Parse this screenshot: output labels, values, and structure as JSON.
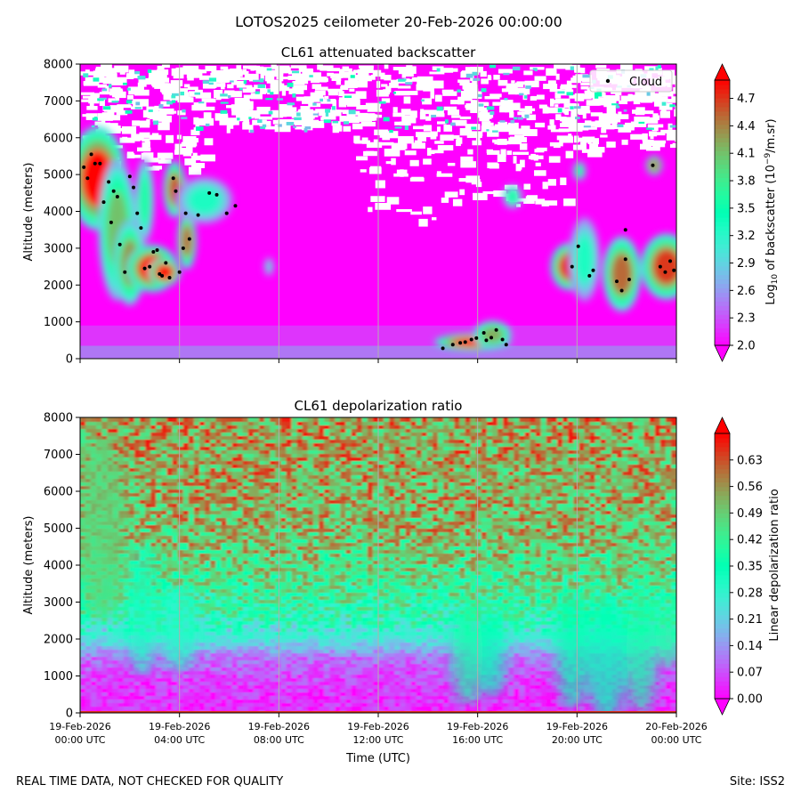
{
  "figure": {
    "suptitle": "LOTOS2025 ceilometer 20-Feb-2026 00:00:00",
    "footer_left": "REAL TIME DATA, NOT CHECKED FOR QUALITY",
    "footer_right": "Site: ISS2"
  },
  "chart_data": [
    {
      "type": "heatmap",
      "title": "CL61 attenuated backscatter",
      "ylabel": "Altitude (meters)",
      "xlabel": "",
      "xlim_hours": [
        0,
        24
      ],
      "ylim": [
        0,
        8000
      ],
      "yticks": [
        0,
        1000,
        2000,
        3000,
        4000,
        5000,
        6000,
        7000,
        8000
      ],
      "xticks_hours": [
        0,
        4,
        8,
        12,
        16,
        20,
        24
      ],
      "grid": "vertical lines at each x tick",
      "colorbar": {
        "label_prefix": "Log",
        "label_sub": "10",
        "label_mid": " of backscatter (10",
        "label_sup": "−9",
        "label_suffix": "/m.sr)",
        "min": 2.0,
        "max": 4.9,
        "ticks": [
          "2.0",
          "2.3",
          "2.6",
          "2.9",
          "3.2",
          "3.5",
          "3.8",
          "4.1",
          "4.4",
          "4.7"
        ],
        "colormap": "rainbow"
      },
      "legend": {
        "label": "Cloud",
        "placement": "top-right"
      },
      "cloud_points": [
        {
          "t": 0.15,
          "alt": 5200
        },
        {
          "t": 0.3,
          "alt": 4900
        },
        {
          "t": 0.45,
          "alt": 5550
        },
        {
          "t": 0.6,
          "alt": 5300
        },
        {
          "t": 0.8,
          "alt": 5300
        },
        {
          "t": 0.95,
          "alt": 4250
        },
        {
          "t": 1.15,
          "alt": 4800
        },
        {
          "t": 1.25,
          "alt": 3700
        },
        {
          "t": 1.35,
          "alt": 4550
        },
        {
          "t": 1.5,
          "alt": 4400
        },
        {
          "t": 1.6,
          "alt": 3100
        },
        {
          "t": 1.8,
          "alt": 2350
        },
        {
          "t": 2.0,
          "alt": 4950
        },
        {
          "t": 2.15,
          "alt": 4650
        },
        {
          "t": 2.3,
          "alt": 3950
        },
        {
          "t": 2.45,
          "alt": 3550
        },
        {
          "t": 2.6,
          "alt": 2450
        },
        {
          "t": 2.8,
          "alt": 2500
        },
        {
          "t": 2.95,
          "alt": 2900
        },
        {
          "t": 3.1,
          "alt": 2950
        },
        {
          "t": 3.2,
          "alt": 2300
        },
        {
          "t": 3.3,
          "alt": 2250
        },
        {
          "t": 3.45,
          "alt": 2600
        },
        {
          "t": 3.6,
          "alt": 2200
        },
        {
          "t": 3.75,
          "alt": 4900
        },
        {
          "t": 3.85,
          "alt": 4550
        },
        {
          "t": 4.0,
          "alt": 2350
        },
        {
          "t": 4.15,
          "alt": 3000
        },
        {
          "t": 4.25,
          "alt": 3950
        },
        {
          "t": 4.4,
          "alt": 3250
        },
        {
          "t": 4.75,
          "alt": 3900
        },
        {
          "t": 5.2,
          "alt": 4500
        },
        {
          "t": 5.5,
          "alt": 4450
        },
        {
          "t": 5.9,
          "alt": 3950
        },
        {
          "t": 6.25,
          "alt": 4150
        },
        {
          "t": 14.6,
          "alt": 280
        },
        {
          "t": 15.0,
          "alt": 380
        },
        {
          "t": 15.3,
          "alt": 430
        },
        {
          "t": 15.5,
          "alt": 450
        },
        {
          "t": 15.75,
          "alt": 520
        },
        {
          "t": 15.95,
          "alt": 560
        },
        {
          "t": 16.25,
          "alt": 700
        },
        {
          "t": 16.35,
          "alt": 500
        },
        {
          "t": 16.55,
          "alt": 570
        },
        {
          "t": 16.75,
          "alt": 780
        },
        {
          "t": 17.0,
          "alt": 520
        },
        {
          "t": 17.15,
          "alt": 380
        },
        {
          "t": 20.05,
          "alt": 3050
        },
        {
          "t": 20.5,
          "alt": 2250
        },
        {
          "t": 20.65,
          "alt": 2400
        },
        {
          "t": 21.6,
          "alt": 2100
        },
        {
          "t": 21.8,
          "alt": 1850
        },
        {
          "t": 21.95,
          "alt": 2700
        },
        {
          "t": 22.1,
          "alt": 2150
        },
        {
          "t": 21.95,
          "alt": 3500
        },
        {
          "t": 23.05,
          "alt": 5250
        },
        {
          "t": 23.35,
          "alt": 2500
        },
        {
          "t": 23.55,
          "alt": 2350
        },
        {
          "t": 23.75,
          "alt": 2650
        },
        {
          "t": 23.9,
          "alt": 2400
        },
        {
          "t": 19.8,
          "alt": 2500
        }
      ],
      "plumes": [
        {
          "t": 0.7,
          "alt": 4900,
          "w": 0.9,
          "h": 1100,
          "v": 4.9
        },
        {
          "t": 1.5,
          "alt": 3500,
          "w": 0.6,
          "h": 1500,
          "v": 4.1
        },
        {
          "t": 2.0,
          "alt": 2600,
          "w": 0.5,
          "h": 900,
          "v": 4.3
        },
        {
          "t": 2.9,
          "alt": 2450,
          "w": 0.8,
          "h": 500,
          "v": 4.9
        },
        {
          "t": 3.4,
          "alt": 2350,
          "w": 0.5,
          "h": 300,
          "v": 4.9
        },
        {
          "t": 2.6,
          "alt": 4300,
          "w": 0.3,
          "h": 900,
          "v": 3.6
        },
        {
          "t": 3.8,
          "alt": 4600,
          "w": 0.35,
          "h": 600,
          "v": 4.6
        },
        {
          "t": 4.3,
          "alt": 3200,
          "w": 0.3,
          "h": 600,
          "v": 4.5
        },
        {
          "t": 5.0,
          "alt": 4300,
          "w": 0.9,
          "h": 500,
          "v": 3.3
        },
        {
          "t": 7.6,
          "alt": 2500,
          "w": 0.15,
          "h": 200,
          "v": 3.0
        },
        {
          "t": 15.8,
          "alt": 450,
          "w": 1.2,
          "h": 180,
          "v": 4.9
        },
        {
          "t": 16.6,
          "alt": 650,
          "w": 0.6,
          "h": 300,
          "v": 4.2
        },
        {
          "t": 17.4,
          "alt": 4400,
          "w": 0.3,
          "h": 250,
          "v": 3.6
        },
        {
          "t": 19.7,
          "alt": 2500,
          "w": 0.6,
          "h": 500,
          "v": 4.8
        },
        {
          "t": 20.3,
          "alt": 2700,
          "w": 0.5,
          "h": 900,
          "v": 3.3
        },
        {
          "t": 21.8,
          "alt": 2300,
          "w": 0.6,
          "h": 800,
          "v": 4.5
        },
        {
          "t": 23.6,
          "alt": 2500,
          "w": 0.8,
          "h": 700,
          "v": 4.7
        },
        {
          "t": 23.1,
          "alt": 5250,
          "w": 0.25,
          "h": 200,
          "v": 4.5
        },
        {
          "t": 20.1,
          "alt": 5100,
          "w": 0.2,
          "h": 200,
          "v": 3.7
        }
      ]
    },
    {
      "type": "heatmap",
      "title": "CL61 depolarization ratio",
      "ylabel": "Altitude (meters)",
      "xlabel": "Time (UTC)",
      "xlim_hours": [
        0,
        24
      ],
      "ylim": [
        0,
        8000
      ],
      "yticks": [
        0,
        1000,
        2000,
        3000,
        4000,
        5000,
        6000,
        7000,
        8000
      ],
      "xticks_hours": [
        0,
        4,
        8,
        12,
        16,
        20,
        24
      ],
      "xtick_labels": [
        [
          "19-Feb-2026",
          "00:00 UTC"
        ],
        [
          "19-Feb-2026",
          "04:00 UTC"
        ],
        [
          "19-Feb-2026",
          "08:00 UTC"
        ],
        [
          "19-Feb-2026",
          "12:00 UTC"
        ],
        [
          "19-Feb-2026",
          "16:00 UTC"
        ],
        [
          "19-Feb-2026",
          "20:00 UTC"
        ],
        [
          "20-Feb-2026",
          "00:00 UTC"
        ]
      ],
      "grid": "vertical lines at each x tick",
      "colorbar": {
        "label": "Linear depolarization ratio",
        "min": 0.0,
        "max": 0.7,
        "ticks": [
          "0.00",
          "0.07",
          "0.14",
          "0.21",
          "0.28",
          "0.35",
          "0.42",
          "0.49",
          "0.56",
          "0.63"
        ],
        "colormap": "rainbow"
      },
      "profile": [
        {
          "alt": 0,
          "v": 0.03
        },
        {
          "alt": 800,
          "v": 0.05
        },
        {
          "alt": 1500,
          "v": 0.1
        },
        {
          "alt": 2000,
          "v": 0.24
        },
        {
          "alt": 2500,
          "v": 0.34
        },
        {
          "alt": 3500,
          "v": 0.44
        },
        {
          "alt": 5000,
          "v": 0.52
        },
        {
          "alt": 8000,
          "v": 0.56
        }
      ]
    }
  ]
}
